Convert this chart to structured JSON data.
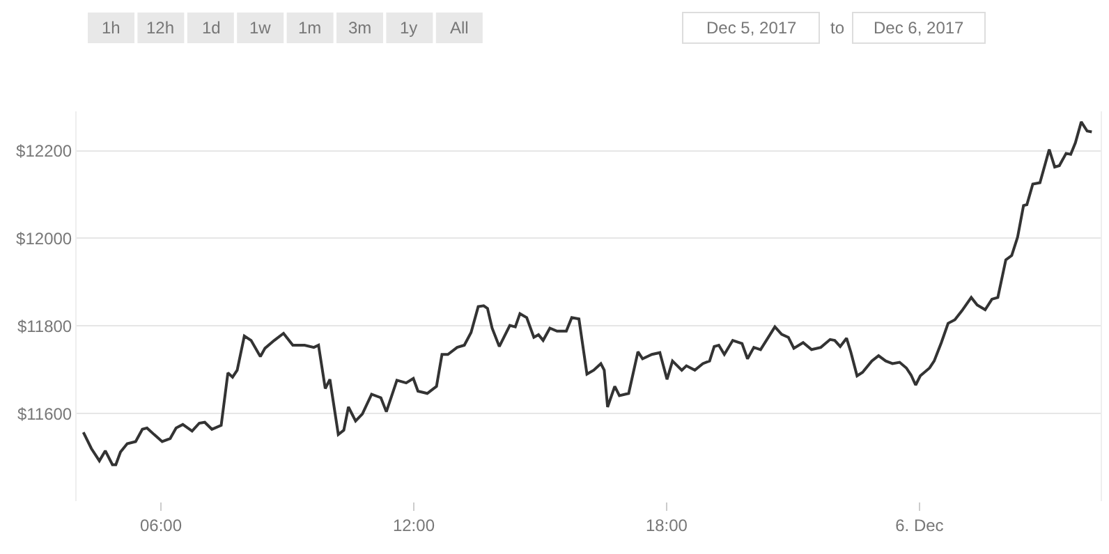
{
  "chart_data": {
    "type": "line",
    "x": [
      4.16,
      4.35,
      4.54,
      4.68,
      4.85,
      4.93,
      5.04,
      5.2,
      5.4,
      5.56,
      5.67,
      5.84,
      6.03,
      6.22,
      6.36,
      6.52,
      6.74,
      6.91,
      7.04,
      7.21,
      7.43,
      7.59,
      7.7,
      7.81,
      7.98,
      8.14,
      8.36,
      8.47,
      8.69,
      8.91,
      9.13,
      9.41,
      9.63,
      9.74,
      9.9,
      10.01,
      10.21,
      10.34,
      10.45,
      10.62,
      10.78,
      11.0,
      11.22,
      11.35,
      11.6,
      11.82,
      11.99,
      12.1,
      12.32,
      12.54,
      12.67,
      12.81,
      13.03,
      13.2,
      13.36,
      13.53,
      13.66,
      13.75,
      13.86,
      14.03,
      14.28,
      14.41,
      14.52,
      14.68,
      14.85,
      14.96,
      15.07,
      15.23,
      15.4,
      15.62,
      15.75,
      15.92,
      16.11,
      16.27,
      16.44,
      16.52,
      16.6,
      16.77,
      16.88,
      17.1,
      17.32,
      17.43,
      17.65,
      17.84,
      18.01,
      18.14,
      18.36,
      18.47,
      18.67,
      18.86,
      19.02,
      19.13,
      19.24,
      19.37,
      19.57,
      19.79,
      19.92,
      20.07,
      20.23,
      20.57,
      20.73,
      20.89,
      21.02,
      21.24,
      21.44,
      21.66,
      21.88,
      21.99,
      22.12,
      22.27,
      22.37,
      22.52,
      22.65,
      22.87,
      23.03,
      23.2,
      23.36,
      23.53,
      23.69,
      23.8,
      23.91,
      24.02,
      24.24,
      24.35,
      24.52,
      24.68,
      24.84,
      25.01,
      25.23,
      25.37,
      25.56,
      25.72,
      25.86,
      26.05,
      26.19,
      26.33,
      26.47,
      26.55,
      26.69,
      26.86,
      27.08,
      27.21,
      27.32,
      27.48,
      27.59,
      27.7,
      27.84,
      27.98,
      28.09
    ],
    "series": [
      {
        "color": "#333333",
        "values": [
          11557,
          11520,
          11492,
          11515,
          11483,
          11483,
          11512,
          11531,
          11536,
          11564,
          11567,
          11552,
          11536,
          11543,
          11567,
          11575,
          11560,
          11578,
          11580,
          11564,
          11573,
          11693,
          11683,
          11699,
          11777,
          11767,
          11730,
          11749,
          11767,
          11783,
          11756,
          11756,
          11751,
          11756,
          11657,
          11678,
          11552,
          11562,
          11615,
          11583,
          11599,
          11644,
          11636,
          11604,
          11676,
          11670,
          11680,
          11651,
          11646,
          11662,
          11735,
          11735,
          11751,
          11756,
          11785,
          11844,
          11846,
          11840,
          11795,
          11753,
          11801,
          11798,
          11828,
          11819,
          11774,
          11780,
          11767,
          11795,
          11788,
          11788,
          11819,
          11816,
          11690,
          11699,
          11714,
          11699,
          11615,
          11662,
          11641,
          11646,
          11741,
          11725,
          11735,
          11739,
          11678,
          11720,
          11699,
          11709,
          11699,
          11714,
          11720,
          11753,
          11756,
          11735,
          11767,
          11760,
          11725,
          11751,
          11746,
          11798,
          11781,
          11774,
          11749,
          11762,
          11746,
          11751,
          11769,
          11767,
          11753,
          11772,
          11741,
          11686,
          11694,
          11720,
          11732,
          11720,
          11714,
          11717,
          11704,
          11688,
          11665,
          11686,
          11704,
          11720,
          11762,
          11806,
          11814,
          11835,
          11865,
          11848,
          11837,
          11861,
          11865,
          11951,
          11961,
          12003,
          12075,
          12077,
          12124,
          12127,
          12203,
          12163,
          12166,
          12194,
          12192,
          12218,
          12266,
          12245,
          12243
        ]
      }
    ],
    "xlim": [
      4.0,
      28.3
    ],
    "xticks": [
      {
        "value": 6,
        "label": "06:00"
      },
      {
        "value": 12,
        "label": "12:00"
      },
      {
        "value": 18,
        "label": "18:00"
      },
      {
        "value": 24,
        "label": "6. Dec"
      }
    ],
    "ylim": [
      11400,
      12290
    ],
    "yticks": [
      {
        "value": 11600,
        "label": "$11600"
      },
      {
        "value": 11800,
        "label": "$11800"
      },
      {
        "value": 12000,
        "label": "$12000"
      },
      {
        "value": 12200,
        "label": "$12200"
      }
    ],
    "grid": "y",
    "marker": "none",
    "line_style": "solid",
    "annotations": [
      "1h",
      "12h",
      "1d",
      "1w",
      "1m",
      "3m",
      "1y",
      "All",
      "Dec 5, 2017",
      "to",
      "Dec 6, 2017"
    ]
  }
}
